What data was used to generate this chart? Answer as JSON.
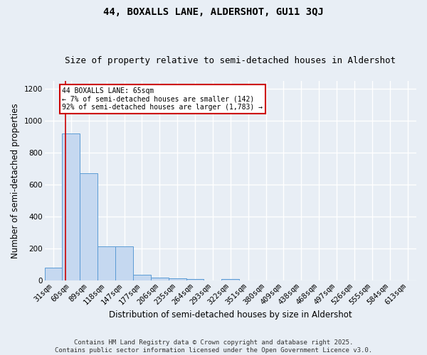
{
  "title1": "44, BOXALLS LANE, ALDERSHOT, GU11 3QJ",
  "title2": "Size of property relative to semi-detached houses in Aldershot",
  "xlabel": "Distribution of semi-detached houses by size in Aldershot",
  "ylabel": "Number of semi-detached properties",
  "bin_labels": [
    "31sqm",
    "60sqm",
    "89sqm",
    "118sqm",
    "147sqm",
    "177sqm",
    "206sqm",
    "235sqm",
    "264sqm",
    "293sqm",
    "322sqm",
    "351sqm",
    "380sqm",
    "409sqm",
    "438sqm",
    "468sqm",
    "497sqm",
    "526sqm",
    "555sqm",
    "584sqm",
    "613sqm"
  ],
  "bin_values": [
    80,
    920,
    670,
    215,
    215,
    38,
    20,
    12,
    8,
    0,
    10,
    0,
    0,
    0,
    0,
    0,
    0,
    0,
    0,
    0,
    0
  ],
  "bar_color": "#c5d8f0",
  "bar_edgecolor": "#5b9bd5",
  "bg_color": "#e8eef5",
  "grid_color": "#ffffff",
  "vline_color": "#cc0000",
  "vline_x": 0.67,
  "annotation_text": "44 BOXALLS LANE: 65sqm\n← 7% of semi-detached houses are smaller (142)\n92% of semi-detached houses are larger (1,783) →",
  "annotation_box_color": "#ffffff",
  "annotation_box_edgecolor": "#cc0000",
  "ylim": [
    0,
    1250
  ],
  "yticks": [
    0,
    200,
    400,
    600,
    800,
    1000,
    1200
  ],
  "footer": "Contains HM Land Registry data © Crown copyright and database right 2025.\nContains public sector information licensed under the Open Government Licence v3.0.",
  "title1_fontsize": 10,
  "title2_fontsize": 9,
  "xlabel_fontsize": 8.5,
  "ylabel_fontsize": 8.5,
  "tick_fontsize": 7.5,
  "footer_fontsize": 6.5
}
